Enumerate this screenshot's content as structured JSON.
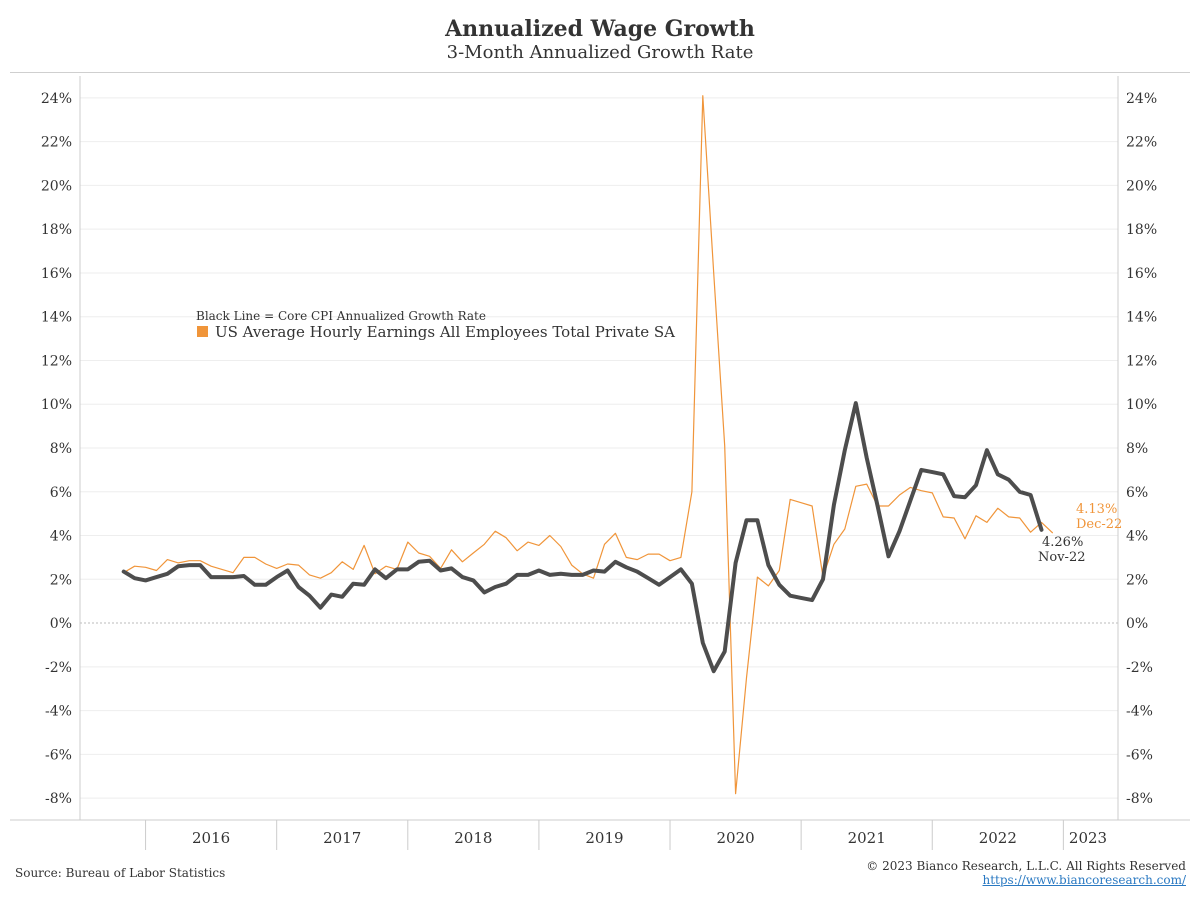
{
  "header": {
    "title": "Annualized Wage Growth",
    "subtitle": "3-Month Annualized Growth Rate"
  },
  "legend": {
    "black_line": "Black Line = Core CPI Annualized Growth Rate",
    "orange_series": "US Average Hourly Earnings All Employees Total Private SA"
  },
  "annotations": {
    "orange_value": "4.13%",
    "orange_date": "Dec-22",
    "black_value": "4.26%",
    "black_date": "Nov-22"
  },
  "footer": {
    "source": "Source: Bureau of Labor Statistics",
    "copyright": "© 2023 Bianco Research, L.L.C. All Rights Reserved",
    "url": "https://www.biancoresearch.com/"
  },
  "colors": {
    "orange": "#f0953a",
    "black": "#4d4d4d",
    "grid": "#eeeeee",
    "zero": "#bbbbbb"
  },
  "chart_data": {
    "type": "line",
    "ylim": [
      -9,
      25
    ],
    "yticks": [
      -8,
      -6,
      -4,
      -2,
      0,
      2,
      4,
      6,
      8,
      10,
      12,
      14,
      16,
      18,
      20,
      22,
      24
    ],
    "ytick_labels": [
      "-8%",
      "-6%",
      "-4%",
      "-2%",
      "0%",
      "2%",
      "4%",
      "6%",
      "8%",
      "10%",
      "12%",
      "14%",
      "16%",
      "18%",
      "20%",
      "22%",
      "24%"
    ],
    "xlim": [
      "2015-07",
      "2023-06"
    ],
    "xtick_labels": [
      "2016",
      "2017",
      "2018",
      "2019",
      "2020",
      "2021",
      "2022",
      "2023"
    ],
    "series": [
      {
        "name": "US Average Hourly Earnings All Employees Total Private SA",
        "start": "2015-11",
        "values": [
          2.3,
          2.6,
          2.55,
          2.4,
          2.9,
          2.75,
          2.85,
          2.85,
          2.6,
          2.45,
          2.3,
          3.0,
          3.0,
          2.7,
          2.5,
          2.7,
          2.65,
          2.2,
          2.05,
          2.3,
          2.8,
          2.45,
          3.55,
          2.25,
          2.6,
          2.45,
          3.7,
          3.2,
          3.05,
          2.5,
          3.35,
          2.8,
          3.2,
          3.6,
          4.2,
          3.9,
          3.3,
          3.7,
          3.55,
          4.0,
          3.5,
          2.65,
          2.25,
          2.05,
          3.6,
          4.1,
          3.0,
          2.9,
          3.15,
          3.15,
          2.85,
          3.0,
          6.0,
          24.1,
          16.0,
          8.1,
          -7.8,
          -2.5,
          2.1,
          1.7,
          2.4,
          5.65,
          5.5,
          5.35,
          2.1,
          3.6,
          4.3,
          6.25,
          6.35,
          5.35,
          5.35,
          5.85,
          6.2,
          6.05,
          5.95,
          4.85,
          4.8,
          3.85,
          4.9,
          4.6,
          5.25,
          4.85,
          4.8,
          4.15,
          4.6,
          4.13
        ]
      },
      {
        "name": "Core CPI Annualized Growth Rate",
        "start": "2015-11",
        "values": [
          2.35,
          2.05,
          1.95,
          2.1,
          2.25,
          2.6,
          2.65,
          2.65,
          2.1,
          2.1,
          2.1,
          2.15,
          1.75,
          1.75,
          2.1,
          2.4,
          1.65,
          1.25,
          0.7,
          1.3,
          1.2,
          1.8,
          1.75,
          2.45,
          2.05,
          2.45,
          2.45,
          2.8,
          2.85,
          2.4,
          2.5,
          2.1,
          1.95,
          1.4,
          1.65,
          1.8,
          2.2,
          2.2,
          2.4,
          2.2,
          2.25,
          2.2,
          2.2,
          2.4,
          2.35,
          2.8,
          2.55,
          2.35,
          2.05,
          1.75,
          2.1,
          2.45,
          1.8,
          -0.9,
          -2.2,
          -1.3,
          2.75,
          4.7,
          4.7,
          2.65,
          1.75,
          1.25,
          1.15,
          1.05,
          2.0,
          5.4,
          7.9,
          10.05,
          7.55,
          5.35,
          3.05,
          4.2,
          5.6,
          7.0,
          6.9,
          6.8,
          5.8,
          5.75,
          6.3,
          7.9,
          6.8,
          6.55,
          6.0,
          5.85,
          4.26
        ]
      }
    ]
  }
}
